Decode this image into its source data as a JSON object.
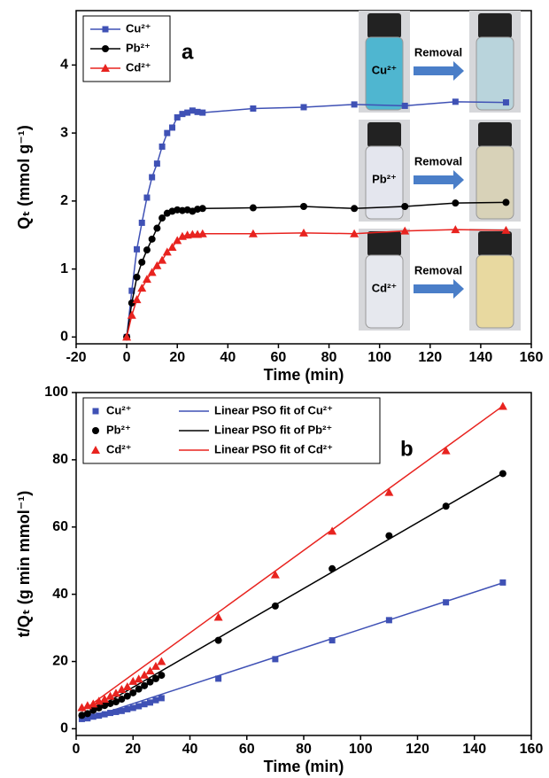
{
  "chart_data": [
    {
      "type": "line",
      "annotation": "a",
      "x_label": "Time (min)",
      "y_label": "Qₜ (mmol g⁻¹)",
      "xlim": [
        -20,
        160
      ],
      "xticks": [
        -20,
        0,
        20,
        40,
        60,
        80,
        100,
        120,
        140,
        160
      ],
      "ylim": [
        -0.1,
        4.8
      ],
      "yticks": [
        0,
        1,
        2,
        3,
        4
      ],
      "legend": "upper left",
      "legend_columns": 1,
      "x": [
        0,
        2,
        4,
        6,
        8,
        10,
        12,
        14,
        16,
        18,
        20,
        22,
        24,
        26,
        28,
        30,
        50,
        70,
        90,
        110,
        130,
        150
      ],
      "series": [
        {
          "name": "Cu²⁺",
          "color": "#3f51b5",
          "marker": "square",
          "line": true,
          "values": [
            0,
            0.68,
            1.29,
            1.68,
            2.05,
            2.35,
            2.55,
            2.8,
            3.0,
            3.08,
            3.23,
            3.28,
            3.3,
            3.33,
            3.31,
            3.3,
            3.36,
            3.38,
            3.42,
            3.4,
            3.46,
            3.45
          ]
        },
        {
          "name": "Pb²⁺",
          "color": "#000000",
          "marker": "circle",
          "line": true,
          "values": [
            0,
            0.5,
            0.88,
            1.1,
            1.28,
            1.44,
            1.6,
            1.75,
            1.82,
            1.85,
            1.87,
            1.86,
            1.87,
            1.85,
            1.88,
            1.89,
            1.9,
            1.92,
            1.89,
            1.92,
            1.97,
            1.98
          ]
        },
        {
          "name": "Cd²⁺",
          "color": "#e8231f",
          "marker": "triangle",
          "line": true,
          "values": [
            0,
            0.32,
            0.55,
            0.72,
            0.85,
            0.95,
            1.05,
            1.13,
            1.25,
            1.32,
            1.42,
            1.48,
            1.5,
            1.51,
            1.51,
            1.52,
            1.52,
            1.53,
            1.52,
            1.56,
            1.58,
            1.57
          ]
        }
      ],
      "photo_labels": [
        "Cu²⁺",
        "Removal",
        "Pb²⁺",
        "Removal",
        "Cd²⁺",
        "Removal"
      ]
    },
    {
      "type": "scatter",
      "annotation": "b",
      "x_label": "Time (min)",
      "y_label": "t/Qₜ (g min mmol⁻¹)",
      "xlim": [
        0,
        160
      ],
      "xticks": [
        0,
        20,
        40,
        60,
        80,
        100,
        120,
        140,
        160
      ],
      "ylim": [
        -2,
        100
      ],
      "yticks": [
        0,
        20,
        40,
        60,
        80,
        100
      ],
      "legend": "upper left",
      "legend_columns": 2,
      "x": [
        2,
        4,
        6,
        8,
        10,
        12,
        14,
        16,
        18,
        20,
        22,
        24,
        26,
        28,
        30,
        50,
        70,
        90,
        110,
        130,
        150
      ],
      "series": [
        {
          "name": "Cu²⁺",
          "color": "#3f51b5",
          "marker": "square",
          "line": false,
          "values": [
            2.9,
            3.1,
            3.6,
            3.9,
            4.3,
            4.7,
            5.0,
            5.3,
            5.8,
            6.2,
            6.7,
            7.3,
            7.8,
            8.5,
            9.1,
            14.9,
            20.7,
            26.3,
            32.3,
            37.6,
            43.5
          ]
        },
        {
          "name": "Linear PSO fit of Cu²⁺",
          "color": "#3f51b5",
          "marker": null,
          "line": true,
          "x": [
            2,
            150
          ],
          "values": [
            2.5,
            43.4
          ]
        },
        {
          "name": "Pb²⁺",
          "color": "#000000",
          "marker": "circle",
          "line": false,
          "values": [
            4.0,
            4.5,
            5.5,
            6.2,
            6.9,
            7.5,
            8.0,
            8.8,
            9.7,
            10.7,
            11.8,
            12.8,
            13.9,
            14.9,
            15.9,
            26.3,
            36.5,
            47.6,
            57.4,
            66.2,
            75.9
          ]
        },
        {
          "name": "Linear PSO fit of Pb²⁺",
          "color": "#000000",
          "marker": null,
          "line": true,
          "x": [
            2,
            150
          ],
          "values": [
            3.5,
            76
          ]
        },
        {
          "name": "Cd²⁺",
          "color": "#e8231f",
          "marker": "triangle",
          "line": false,
          "values": [
            6.3,
            6.9,
            7.4,
            8.2,
            8.8,
            9.7,
            10.6,
            11.7,
            12.5,
            14.1,
            14.8,
            16,
            17.2,
            18.6,
            20,
            33.2,
            45.8,
            58.8,
            70.3,
            82.7,
            95.9
          ]
        },
        {
          "name": "Linear PSO fit of Cd²⁺",
          "color": "#e8231f",
          "marker": null,
          "line": true,
          "x": [
            2,
            150
          ],
          "values": [
            5.2,
            96
          ]
        }
      ]
    }
  ]
}
